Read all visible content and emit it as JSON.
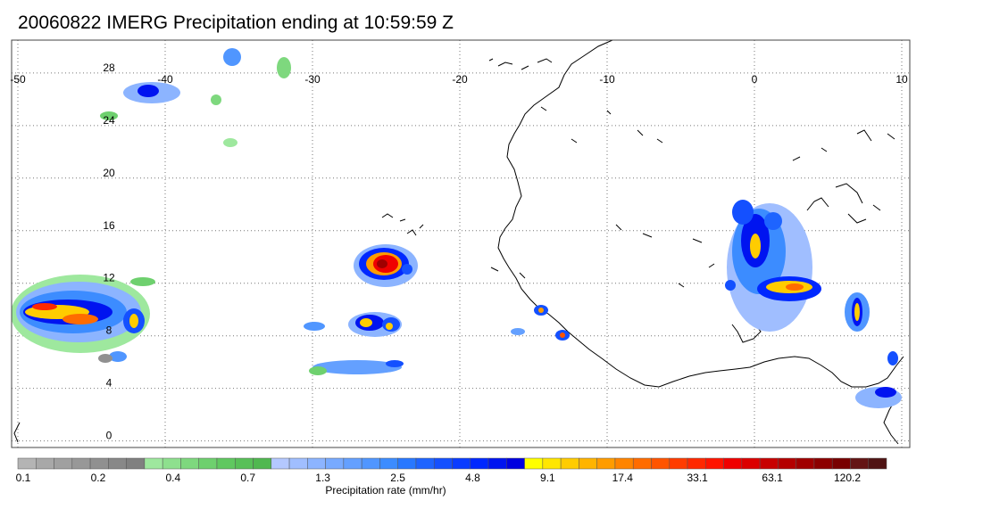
{
  "title": "20060822 IMERG Precipitation ending at 10:59:59 Z",
  "map": {
    "lon_range": [
      -50,
      10
    ],
    "lat_range": [
      -0.5,
      30.5
    ],
    "lon_ticks": [
      "-50",
      "-40",
      "-30",
      "-20",
      "-10",
      "0",
      "10"
    ],
    "lat_ticks": [
      "28",
      "24",
      "20",
      "16",
      "12",
      "8",
      "4",
      "0"
    ],
    "gridlines": true
  },
  "colorbar": {
    "caption": "Precipitation rate (mm/hr)",
    "labels": [
      "0.1",
      "0.2",
      "0.4",
      "0.7",
      "1.3",
      "2.5",
      "4.8",
      "9.1",
      "17.4",
      "33.1",
      "63.1",
      "120.2"
    ],
    "colors": [
      "#b4b4b4",
      "#a8a8a8",
      "#a0a0a0",
      "#989898",
      "#909090",
      "#888888",
      "#808080",
      "#9ee89e",
      "#8ee08e",
      "#7ed87e",
      "#6ed06e",
      "#60c860",
      "#58c058",
      "#50b850",
      "#b4c8ff",
      "#a0beff",
      "#8cb4ff",
      "#78aaff",
      "#64a0ff",
      "#5096ff",
      "#3c8cff",
      "#2878ff",
      "#1e64ff",
      "#1450ff",
      "#0a3cff",
      "#0028ff",
      "#0014f0",
      "#0000e0",
      "#ffff00",
      "#ffe600",
      "#ffcc00",
      "#ffb400",
      "#ff9c00",
      "#ff8400",
      "#ff6c00",
      "#ff5400",
      "#ff3c00",
      "#ff2800",
      "#ff1400",
      "#f00000",
      "#dc0000",
      "#c80000",
      "#b40000",
      "#a00000",
      "#8c0000",
      "#780000",
      "#641414",
      "#501414"
    ]
  }
}
